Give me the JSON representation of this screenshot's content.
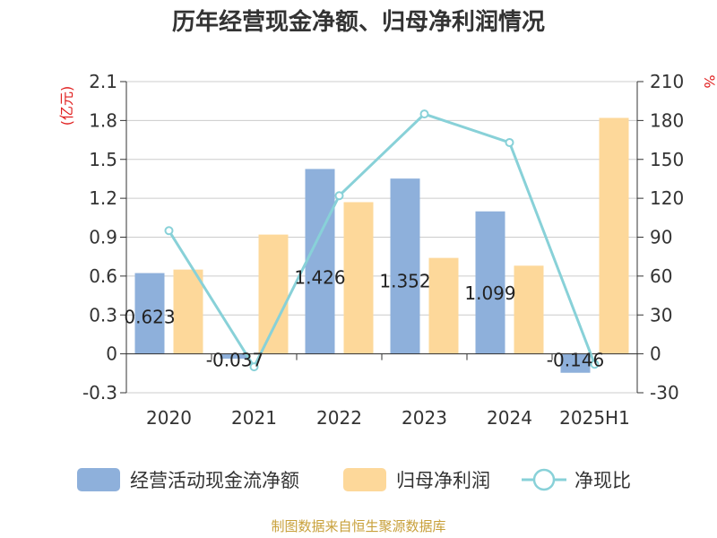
{
  "chart_data": {
    "type": "bar",
    "title": "历年经营现金净额、归母净利润情况",
    "categories": [
      "2020",
      "2021",
      "2022",
      "2023",
      "2024",
      "2025H1"
    ],
    "y_left": {
      "unit": "(亿元)",
      "ylim": [
        -0.3,
        2.1
      ],
      "ticks": [
        "-0.3",
        "0",
        "0.3",
        "0.6",
        "0.9",
        "1.2",
        "1.5",
        "1.8",
        "2.1"
      ]
    },
    "y_right": {
      "unit": "%",
      "ylim": [
        -30,
        210
      ],
      "ticks": [
        "-30",
        "0",
        "30",
        "60",
        "90",
        "120",
        "150",
        "180",
        "210"
      ]
    },
    "series": [
      {
        "name": "经营活动现金流净额",
        "type": "bar",
        "axis": "left",
        "color": "#8eb0db",
        "values": [
          0.623,
          -0.037,
          1.426,
          1.352,
          1.099,
          -0.146
        ],
        "labels": [
          "0.623",
          "-0.037",
          "1.426",
          "1.352",
          "1.099",
          "-0.146"
        ]
      },
      {
        "name": "归母净利润",
        "type": "bar",
        "axis": "left",
        "color": "#fdd89a",
        "values": [
          0.65,
          0.92,
          1.17,
          0.74,
          0.68,
          1.82
        ]
      },
      {
        "name": "净现比",
        "type": "line",
        "axis": "right",
        "color": "#88d1d8",
        "values": [
          95,
          -10,
          122,
          185,
          163,
          -8
        ]
      }
    ],
    "legend_position": "bottom",
    "grid": true
  },
  "source": "制图数据来自恒生聚源数据库",
  "colors": {
    "unit_red": "#e02020",
    "source_gold": "#c8a03a",
    "grid": "#cccccc",
    "axis": "#333333"
  }
}
